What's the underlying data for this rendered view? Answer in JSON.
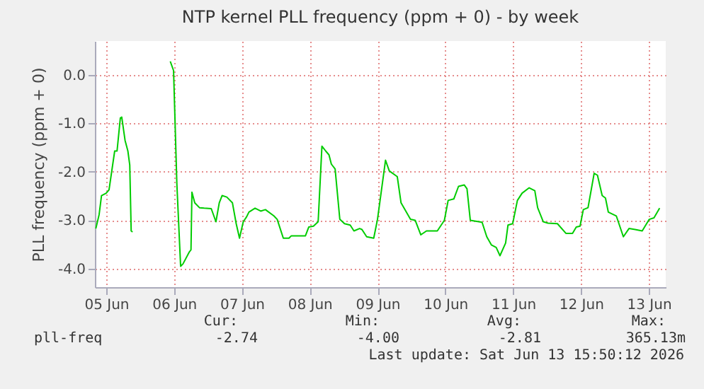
{
  "chart_data": {
    "type": "line",
    "title": "NTP kernel PLL frequency (ppm + 0) - by week",
    "ylabel": "PLL frequency (ppm + 0)",
    "x": [
      "2026-06-04T20:20",
      "2026-06-04T21:30",
      "2026-06-04T22:20",
      "2026-06-05T00:00",
      "2026-06-05T01:00",
      "2026-06-05T03:00",
      "2026-06-05T03:50",
      "2026-06-05T05:00",
      "2026-06-05T05:30",
      "2026-06-05T06:40",
      "2026-06-05T07:40",
      "2026-06-05T08:20",
      "2026-06-05T08:50",
      "2026-06-05T09:20",
      "2026-06-05T15:00",
      "2026-06-05T22:40",
      "2026-06-05T23:50",
      "2026-06-06T01:00",
      "2026-06-06T02:20",
      "2026-06-06T03:10",
      "2026-06-06T05:20",
      "2026-06-06T06:00",
      "2026-06-06T06:20",
      "2026-06-06T07:20",
      "2026-06-06T09:00",
      "2026-06-06T10:40",
      "2026-06-06T13:10",
      "2026-06-06T14:50",
      "2026-06-06T16:00",
      "2026-06-06T17:00",
      "2026-06-06T18:40",
      "2026-06-06T20:40",
      "2026-06-06T22:00",
      "2026-06-06T23:10",
      "2026-06-07T00:30",
      "2026-06-07T01:40",
      "2026-06-07T02:30",
      "2026-06-07T04:40",
      "2026-06-07T06:40",
      "2026-06-07T08:20",
      "2026-06-07T11:20",
      "2026-06-07T12:30",
      "2026-06-07T14:40",
      "2026-06-07T16:40",
      "2026-06-07T17:30",
      "2026-06-07T22:30",
      "2026-06-07T23:40",
      "2026-06-08T01:20",
      "2026-06-08T03:00",
      "2026-06-08T04:20",
      "2026-06-08T05:40",
      "2026-06-08T06:50",
      "2026-06-08T07:40",
      "2026-06-08T09:00",
      "2026-06-08T10:40",
      "2026-06-08T12:20",
      "2026-06-08T14:20",
      "2026-06-08T15:40",
      "2026-06-08T17:40",
      "2026-06-08T18:30",
      "2026-06-08T20:10",
      "2026-06-08T22:40",
      "2026-06-09T00:00",
      "2026-06-09T02:50",
      "2026-06-09T04:10",
      "2026-06-09T07:00",
      "2026-06-09T08:20",
      "2026-06-09T11:40",
      "2026-06-09T13:20",
      "2026-06-09T15:20",
      "2026-06-09T17:20",
      "2026-06-09T21:10",
      "2026-06-09T23:40",
      "2026-06-10T01:00",
      "2026-06-10T03:00",
      "2026-06-10T04:40",
      "2026-06-10T06:40",
      "2026-06-10T07:40",
      "2026-06-10T08:50",
      "2026-06-10T13:00",
      "2026-06-10T14:40",
      "2026-06-10T16:20",
      "2026-06-10T18:00",
      "2026-06-10T19:20",
      "2026-06-10T21:20",
      "2026-06-10T22:10",
      "2026-06-10T23:50",
      "2026-06-11T01:30",
      "2026-06-11T03:10",
      "2026-06-11T05:40",
      "2026-06-11T07:40",
      "2026-06-11T08:40",
      "2026-06-11T10:40",
      "2026-06-11T12:20",
      "2026-06-11T15:40",
      "2026-06-11T18:40",
      "2026-06-11T21:00",
      "2026-06-11T22:20",
      "2026-06-11T23:40",
      "2026-06-12T00:50",
      "2026-06-12T02:30",
      "2026-06-12T04:40",
      "2026-06-12T05:50",
      "2026-06-12T07:30",
      "2026-06-12T08:40",
      "2026-06-12T09:40",
      "2026-06-12T12:30",
      "2026-06-12T15:00",
      "2026-06-12T17:00",
      "2026-06-12T19:10",
      "2026-06-12T21:40",
      "2026-06-13T00:10",
      "2026-06-13T01:50",
      "2026-06-13T03:50"
    ],
    "series": [
      {
        "name": "pll-freq",
        "color": "#00cc00",
        "values": [
          -3.17,
          -2.88,
          -2.49,
          -2.44,
          -2.37,
          -1.57,
          -1.57,
          -0.89,
          -0.87,
          -1.35,
          -1.57,
          -1.86,
          -3.22,
          -3.24,
          null,
          0.28,
          0.09,
          -2.25,
          -3.95,
          -3.9,
          -3.66,
          -3.61,
          -2.42,
          -2.64,
          -2.74,
          -2.75,
          -2.76,
          -3.03,
          -2.64,
          -2.49,
          -2.52,
          -2.64,
          -3.07,
          -3.37,
          -3.03,
          -2.93,
          -2.83,
          -2.75,
          -2.81,
          -2.78,
          -2.91,
          -2.98,
          -3.37,
          -3.37,
          -3.32,
          -3.32,
          -3.14,
          -3.12,
          -3.03,
          -1.47,
          -1.57,
          -1.65,
          -1.84,
          -1.94,
          -2.98,
          -3.07,
          -3.1,
          -3.22,
          -3.17,
          -3.19,
          -3.34,
          -3.37,
          -2.98,
          -1.76,
          -1.98,
          -2.1,
          -2.64,
          -2.98,
          -3.0,
          -3.3,
          -3.22,
          -3.22,
          -3.0,
          -2.59,
          -2.56,
          -2.3,
          -2.27,
          -2.35,
          -3.0,
          -3.04,
          -3.34,
          -3.51,
          -3.56,
          -3.73,
          -3.47,
          -3.1,
          -3.07,
          -2.59,
          -2.44,
          -2.33,
          -2.39,
          -2.74,
          -3.03,
          -3.06,
          -3.07,
          -3.27,
          -3.27,
          -3.14,
          -3.12,
          -2.78,
          -2.74,
          -2.03,
          -2.07,
          -2.49,
          -2.54,
          -2.83,
          -2.91,
          -3.34,
          -3.17,
          -3.19,
          -3.22,
          -2.98,
          -2.95,
          -2.75
        ]
      }
    ],
    "xlim": [
      "2026-06-04T20:00",
      "2026-06-13T06:00"
    ],
    "xticks": [
      {
        "value": "2026-06-05",
        "label": "05 Jun"
      },
      {
        "value": "2026-06-06",
        "label": "06 Jun"
      },
      {
        "value": "2026-06-07",
        "label": "07 Jun"
      },
      {
        "value": "2026-06-08",
        "label": "08 Jun"
      },
      {
        "value": "2026-06-09",
        "label": "09 Jun"
      },
      {
        "value": "2026-06-10",
        "label": "10 Jun"
      },
      {
        "value": "2026-06-11",
        "label": "11 Jun"
      },
      {
        "value": "2026-06-12",
        "label": "12 Jun"
      },
      {
        "value": "2026-06-13",
        "label": "13 Jun"
      }
    ],
    "ylim": [
      -4.38,
      0.7
    ],
    "yticks": [
      {
        "value": -4,
        "label": "-4.0"
      },
      {
        "value": -3,
        "label": "-3.0"
      },
      {
        "value": -2,
        "label": "-2.0"
      },
      {
        "value": -1,
        "label": "-1.0"
      },
      {
        "value": 0,
        "label": "0.0"
      }
    ],
    "grid": true,
    "legend": "bottom",
    "annotations": [
      "Cur:",
      "-2.74",
      "Min:",
      "-4.00",
      "Avg:",
      "-2.81",
      "Max:",
      "365.13m",
      "Last update: Sat Jun 13 15:50:12 2026"
    ]
  }
}
